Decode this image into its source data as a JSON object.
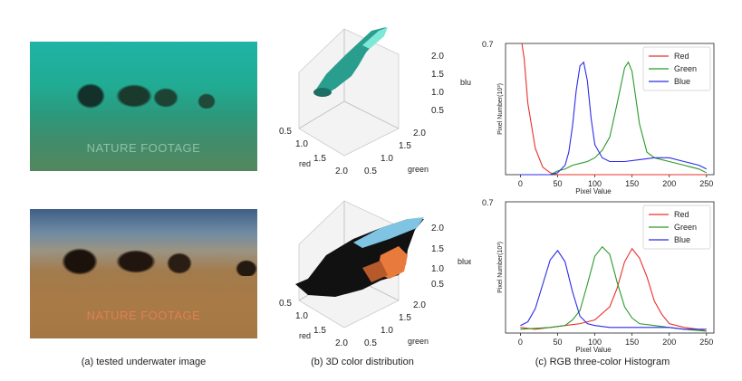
{
  "photos": {
    "top": {
      "watermark": "NATURE FOOTAGE"
    },
    "bottom": {
      "watermark": "NATURE FOOTAGE"
    }
  },
  "captions": {
    "a": "(a) tested underwater image",
    "b": "(b) 3D color distribution",
    "c": "(c) RGB three-color Histogram"
  },
  "scatter3d": {
    "axis_red_label": "red",
    "axis_green_label": "green",
    "axis_blue_label": "blue",
    "red_ticks": [
      "0.5",
      "1.0",
      "1.5",
      "2.0"
    ],
    "green_ticks": [
      "0.5",
      "1.0",
      "1.5",
      "2.0"
    ],
    "blue_ticks": [
      "0.5",
      "1.0",
      "1.5",
      "2.0"
    ]
  },
  "chart_data": [
    {
      "type": "line",
      "xlabel": "Pixel Value",
      "ylabel": "Pixel Number(10³)",
      "ylim": [
        0,
        0.7
      ],
      "y_ticks": [
        "0.7"
      ],
      "x_ticks": [
        0,
        50,
        100,
        150,
        200,
        250
      ],
      "xlim": [
        -20,
        260
      ],
      "legend": "top-right",
      "colors": {
        "Red": "#e8302a",
        "Green": "#2a9a2a",
        "Blue": "#2b2bea"
      },
      "series": [
        {
          "name": "Red",
          "x": [
            2,
            5,
            10,
            20,
            30,
            40,
            50,
            60,
            70,
            80,
            100,
            120,
            150,
            180,
            200,
            230,
            250
          ],
          "values": [
            0.7,
            0.62,
            0.38,
            0.14,
            0.04,
            0.01,
            0.0,
            0.0,
            0.0,
            0.0,
            0.0,
            0.0,
            0.0,
            0.0,
            0.0,
            0.0,
            0.0
          ]
        },
        {
          "name": "Green",
          "x": [
            0,
            40,
            50,
            60,
            70,
            80,
            90,
            100,
            110,
            120,
            130,
            140,
            145,
            150,
            160,
            170,
            180,
            190,
            200,
            220,
            240,
            250
          ],
          "values": [
            0.0,
            0.0,
            0.02,
            0.03,
            0.05,
            0.06,
            0.07,
            0.09,
            0.13,
            0.2,
            0.38,
            0.57,
            0.6,
            0.55,
            0.27,
            0.12,
            0.09,
            0.08,
            0.07,
            0.05,
            0.03,
            0.01
          ]
        },
        {
          "name": "Blue",
          "x": [
            0,
            40,
            50,
            60,
            65,
            70,
            75,
            80,
            85,
            90,
            95,
            100,
            110,
            120,
            140,
            160,
            180,
            200,
            220,
            240,
            250
          ],
          "values": [
            0.0,
            0.0,
            0.01,
            0.05,
            0.12,
            0.26,
            0.45,
            0.58,
            0.6,
            0.5,
            0.3,
            0.16,
            0.09,
            0.07,
            0.07,
            0.08,
            0.09,
            0.09,
            0.07,
            0.05,
            0.03
          ]
        }
      ]
    },
    {
      "type": "line",
      "xlabel": "Pixel Value",
      "ylabel": "Pixel Number(10³)",
      "ylim": [
        0,
        0.7
      ],
      "y_ticks": [
        "0.7"
      ],
      "x_ticks": [
        0,
        50,
        100,
        150,
        200,
        250
      ],
      "xlim": [
        -20,
        260
      ],
      "legend": "top-right",
      "colors": {
        "Red": "#e8302a",
        "Green": "#2a9a2a",
        "Blue": "#2b2bea"
      },
      "series": [
        {
          "name": "Red",
          "x": [
            0,
            20,
            40,
            60,
            80,
            100,
            120,
            130,
            140,
            150,
            160,
            170,
            180,
            190,
            200,
            220,
            240,
            250
          ],
          "values": [
            0.03,
            0.02,
            0.03,
            0.04,
            0.05,
            0.07,
            0.14,
            0.24,
            0.38,
            0.45,
            0.4,
            0.3,
            0.17,
            0.1,
            0.05,
            0.03,
            0.02,
            0.01
          ]
        },
        {
          "name": "Green",
          "x": [
            0,
            40,
            60,
            70,
            80,
            90,
            100,
            110,
            120,
            130,
            140,
            150,
            160,
            180,
            200,
            220,
            250
          ],
          "values": [
            0.02,
            0.03,
            0.04,
            0.07,
            0.12,
            0.26,
            0.41,
            0.46,
            0.42,
            0.27,
            0.14,
            0.08,
            0.05,
            0.04,
            0.03,
            0.02,
            0.01
          ]
        },
        {
          "name": "Blue",
          "x": [
            0,
            10,
            20,
            30,
            40,
            50,
            60,
            70,
            80,
            90,
            100,
            120,
            150,
            180,
            200,
            220,
            250
          ],
          "values": [
            0.04,
            0.06,
            0.13,
            0.26,
            0.39,
            0.44,
            0.38,
            0.22,
            0.09,
            0.05,
            0.04,
            0.03,
            0.03,
            0.03,
            0.03,
            0.02,
            0.02
          ]
        }
      ]
    }
  ]
}
